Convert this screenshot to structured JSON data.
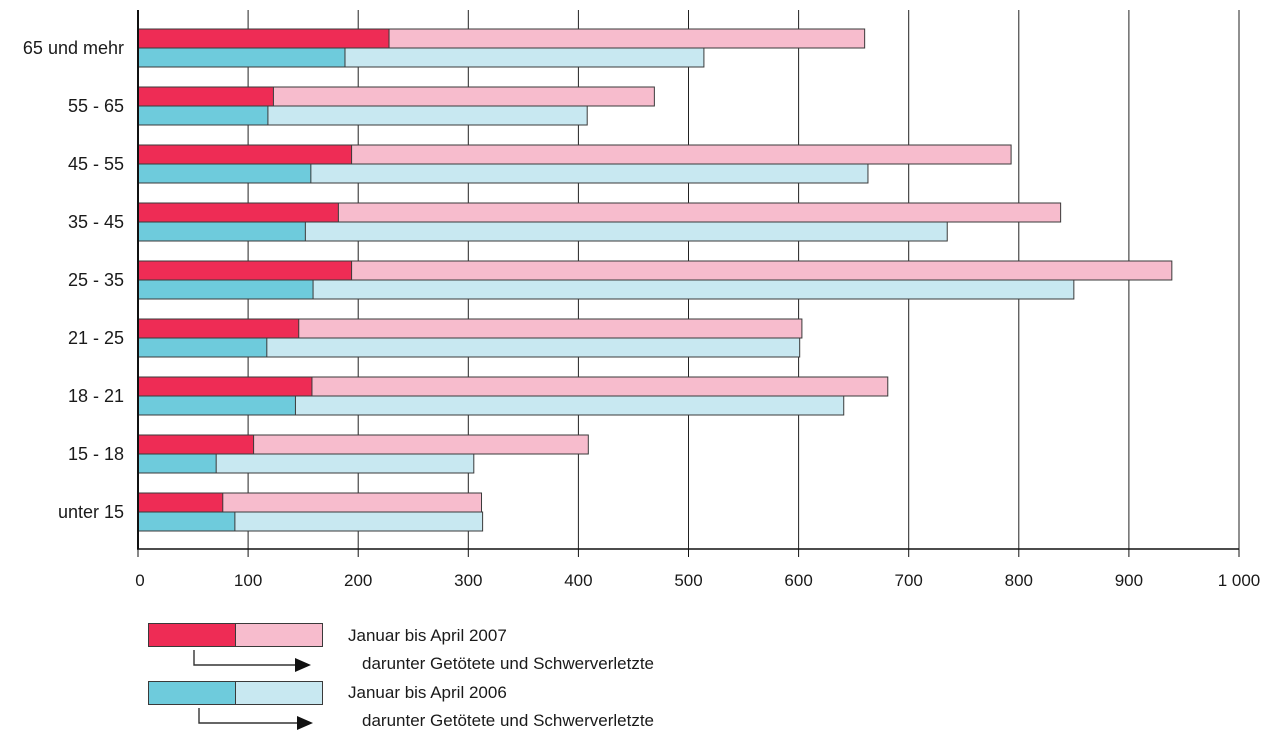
{
  "chart_data": {
    "type": "bar",
    "orientation": "horizontal",
    "categories": [
      "65 und mehr",
      "55 - 65",
      "45 - 55",
      "35 - 45",
      "25 - 35",
      "21 - 25",
      "18 - 21",
      "15 - 18",
      "unter 15"
    ],
    "series": [
      {
        "name": "Januar bis April 2007",
        "values": [
          660,
          469,
          793,
          838,
          939,
          603,
          681,
          409,
          312
        ],
        "color": "#f7bccd"
      },
      {
        "name": "darunter Getötete und Schwerverletzte",
        "values": [
          228,
          123,
          194,
          182,
          194,
          146,
          158,
          105,
          77
        ],
        "color": "#ee2c55"
      },
      {
        "name": "Januar bis April 2006",
        "values": [
          514,
          408,
          663,
          735,
          850,
          601,
          641,
          305,
          313
        ],
        "color": "#c8e8f1"
      },
      {
        "name": "darunter Getötete und Schwerverletzte",
        "values": [
          188,
          118,
          157,
          152,
          159,
          117,
          143,
          71,
          88
        ],
        "color": "#6ecbdc"
      }
    ],
    "xlim": [
      0,
      1000
    ],
    "xticks": [
      0,
      100,
      200,
      300,
      400,
      500,
      600,
      700,
      800,
      900,
      1000
    ],
    "xtick_labels": [
      "0",
      "100",
      "200",
      "300",
      "400",
      "500",
      "600",
      "700",
      "800",
      "900",
      "1 000"
    ],
    "grid": "vertical",
    "legend_position": "bottom-left"
  },
  "legend": {
    "row_2007": "Januar bis April 2007",
    "sub_2007": "darunter Getötete und Schwerverletzte",
    "row_2006": "Januar bis April 2006",
    "sub_2006": "darunter Getötete und Schwerverletzte"
  },
  "colors": {
    "red_dark": "#ee2c55",
    "red_light": "#f7bccd",
    "blue_dark": "#6ecbdc",
    "blue_light": "#c8e8f1"
  }
}
